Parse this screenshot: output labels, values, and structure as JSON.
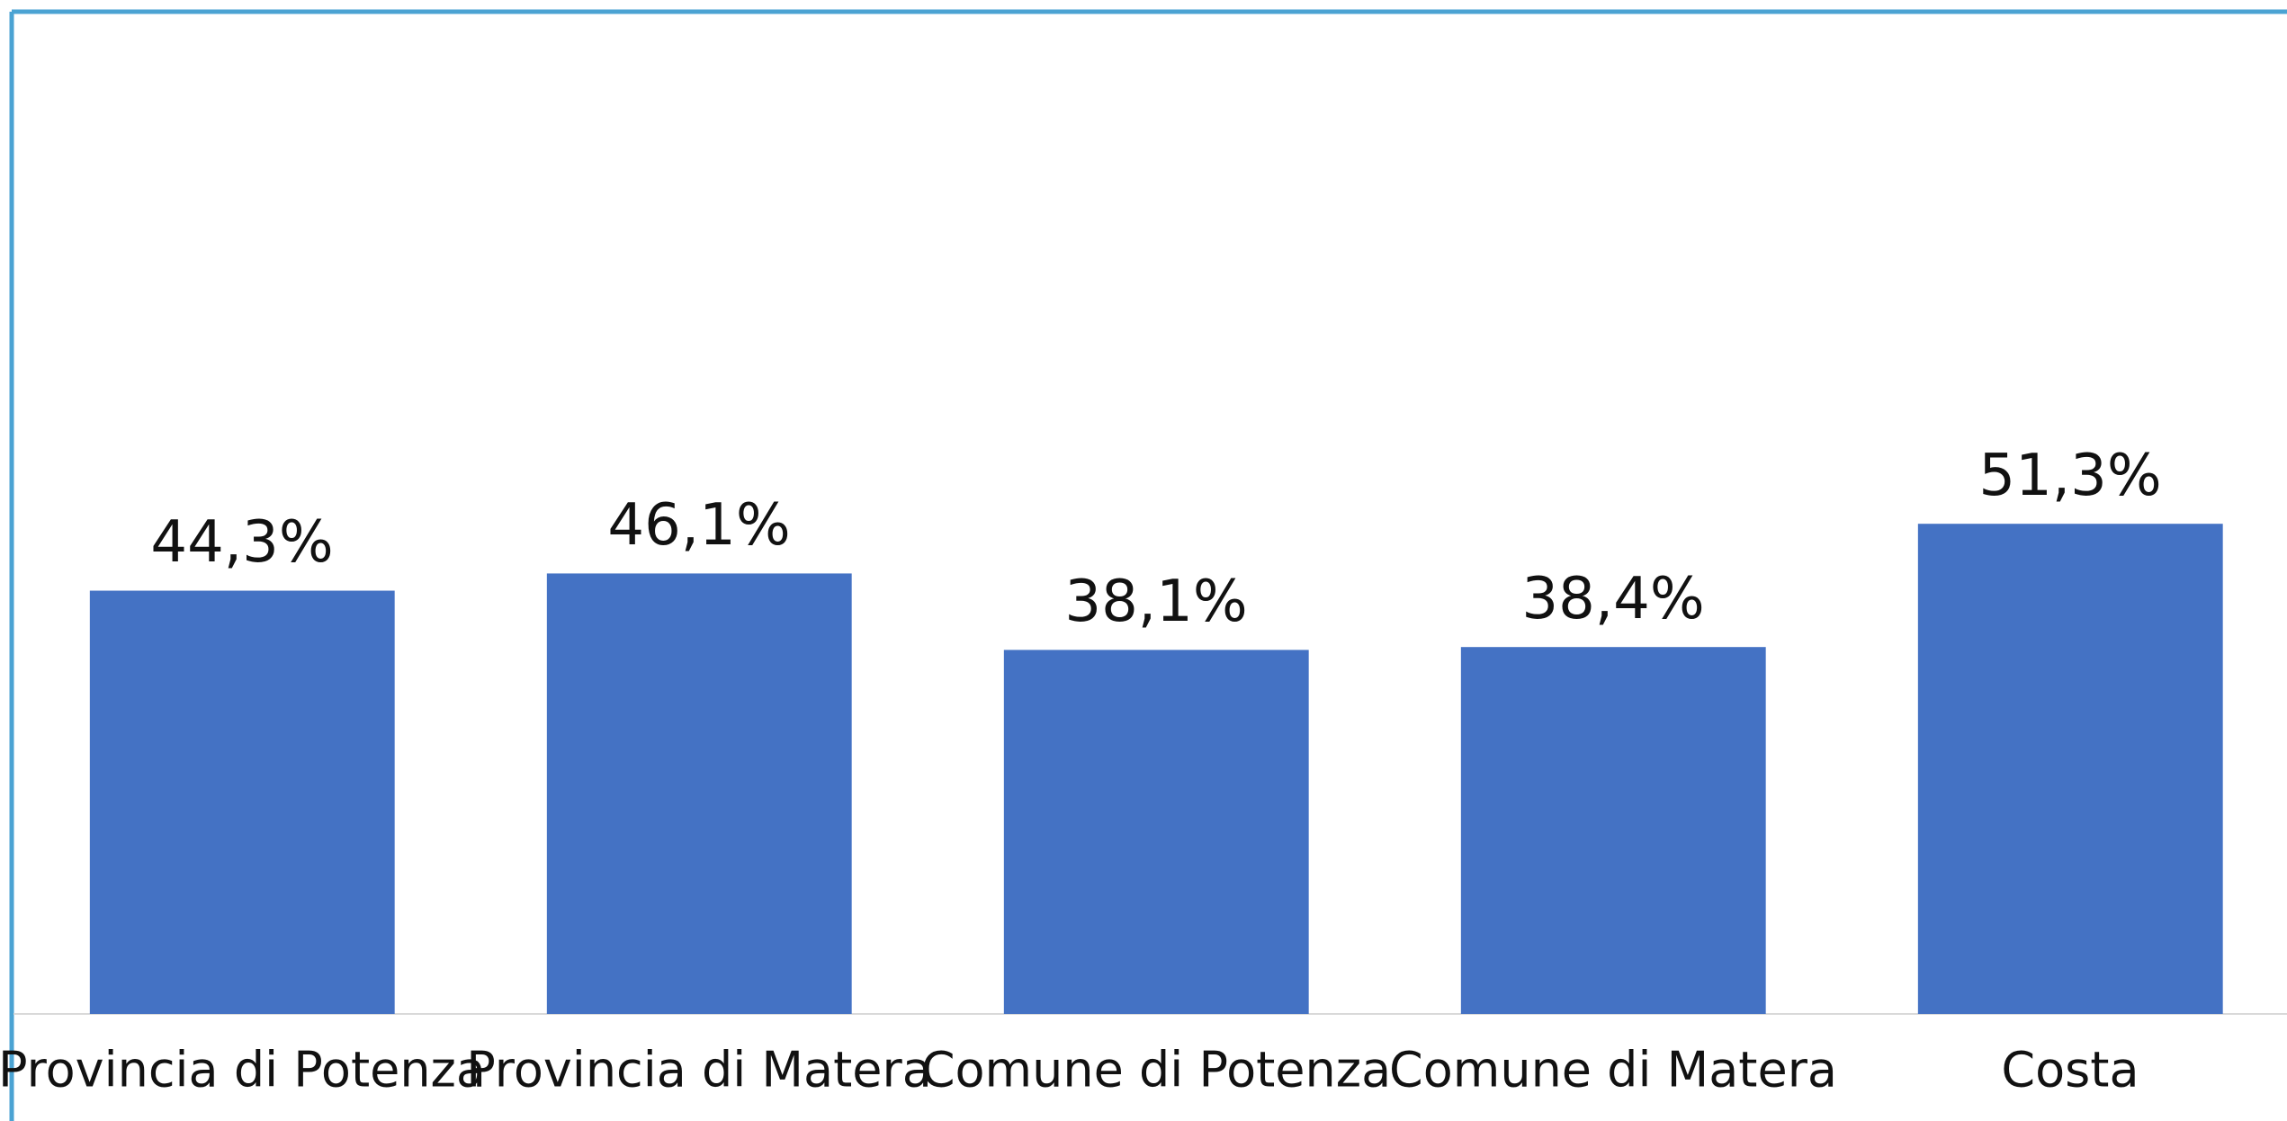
{
  "chart_data": {
    "type": "bar",
    "categories": [
      "Provincia di Potenza",
      "Provincia di Matera",
      "Comune di Potenza",
      "Comune di Matera",
      "Costa"
    ],
    "values": [
      44.3,
      46.1,
      38.1,
      38.4,
      51.3
    ],
    "value_labels": [
      "44,3%",
      "46,1%",
      "38,1%",
      "38,4%",
      "51,3%"
    ],
    "color": "#4472c4",
    "ylim": [
      0,
      100
    ]
  }
}
